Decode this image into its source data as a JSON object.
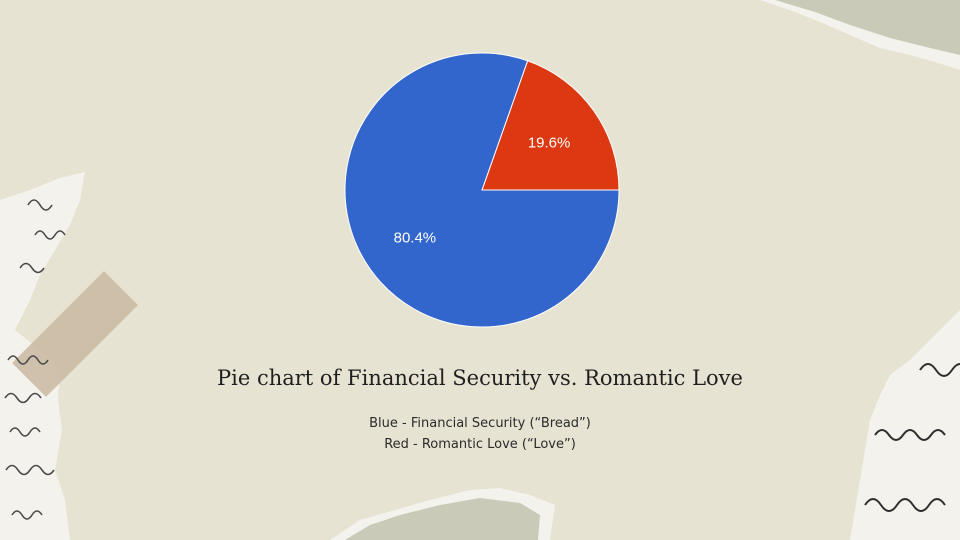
{
  "colors": {
    "background": "#e6e3d2",
    "paper": "#f4f2ec",
    "tape": "#c9b9a2",
    "ink": "#4a4a4a",
    "blue": "#3366cc",
    "red": "#dc3912"
  },
  "chart_data": {
    "type": "pie",
    "title": "Pie chart of Financial Security vs. Romantic Love",
    "slices": [
      {
        "label": "Blue - Financial Security (“Bread”)",
        "value": 80.4,
        "value_label": "80.4%",
        "color": "#3366cc"
      },
      {
        "label": "Red - Romantic Love (“Love”)",
        "value": 19.6,
        "value_label": "19.6%",
        "color": "#dc3912"
      }
    ],
    "legend_placement": "bottom"
  }
}
